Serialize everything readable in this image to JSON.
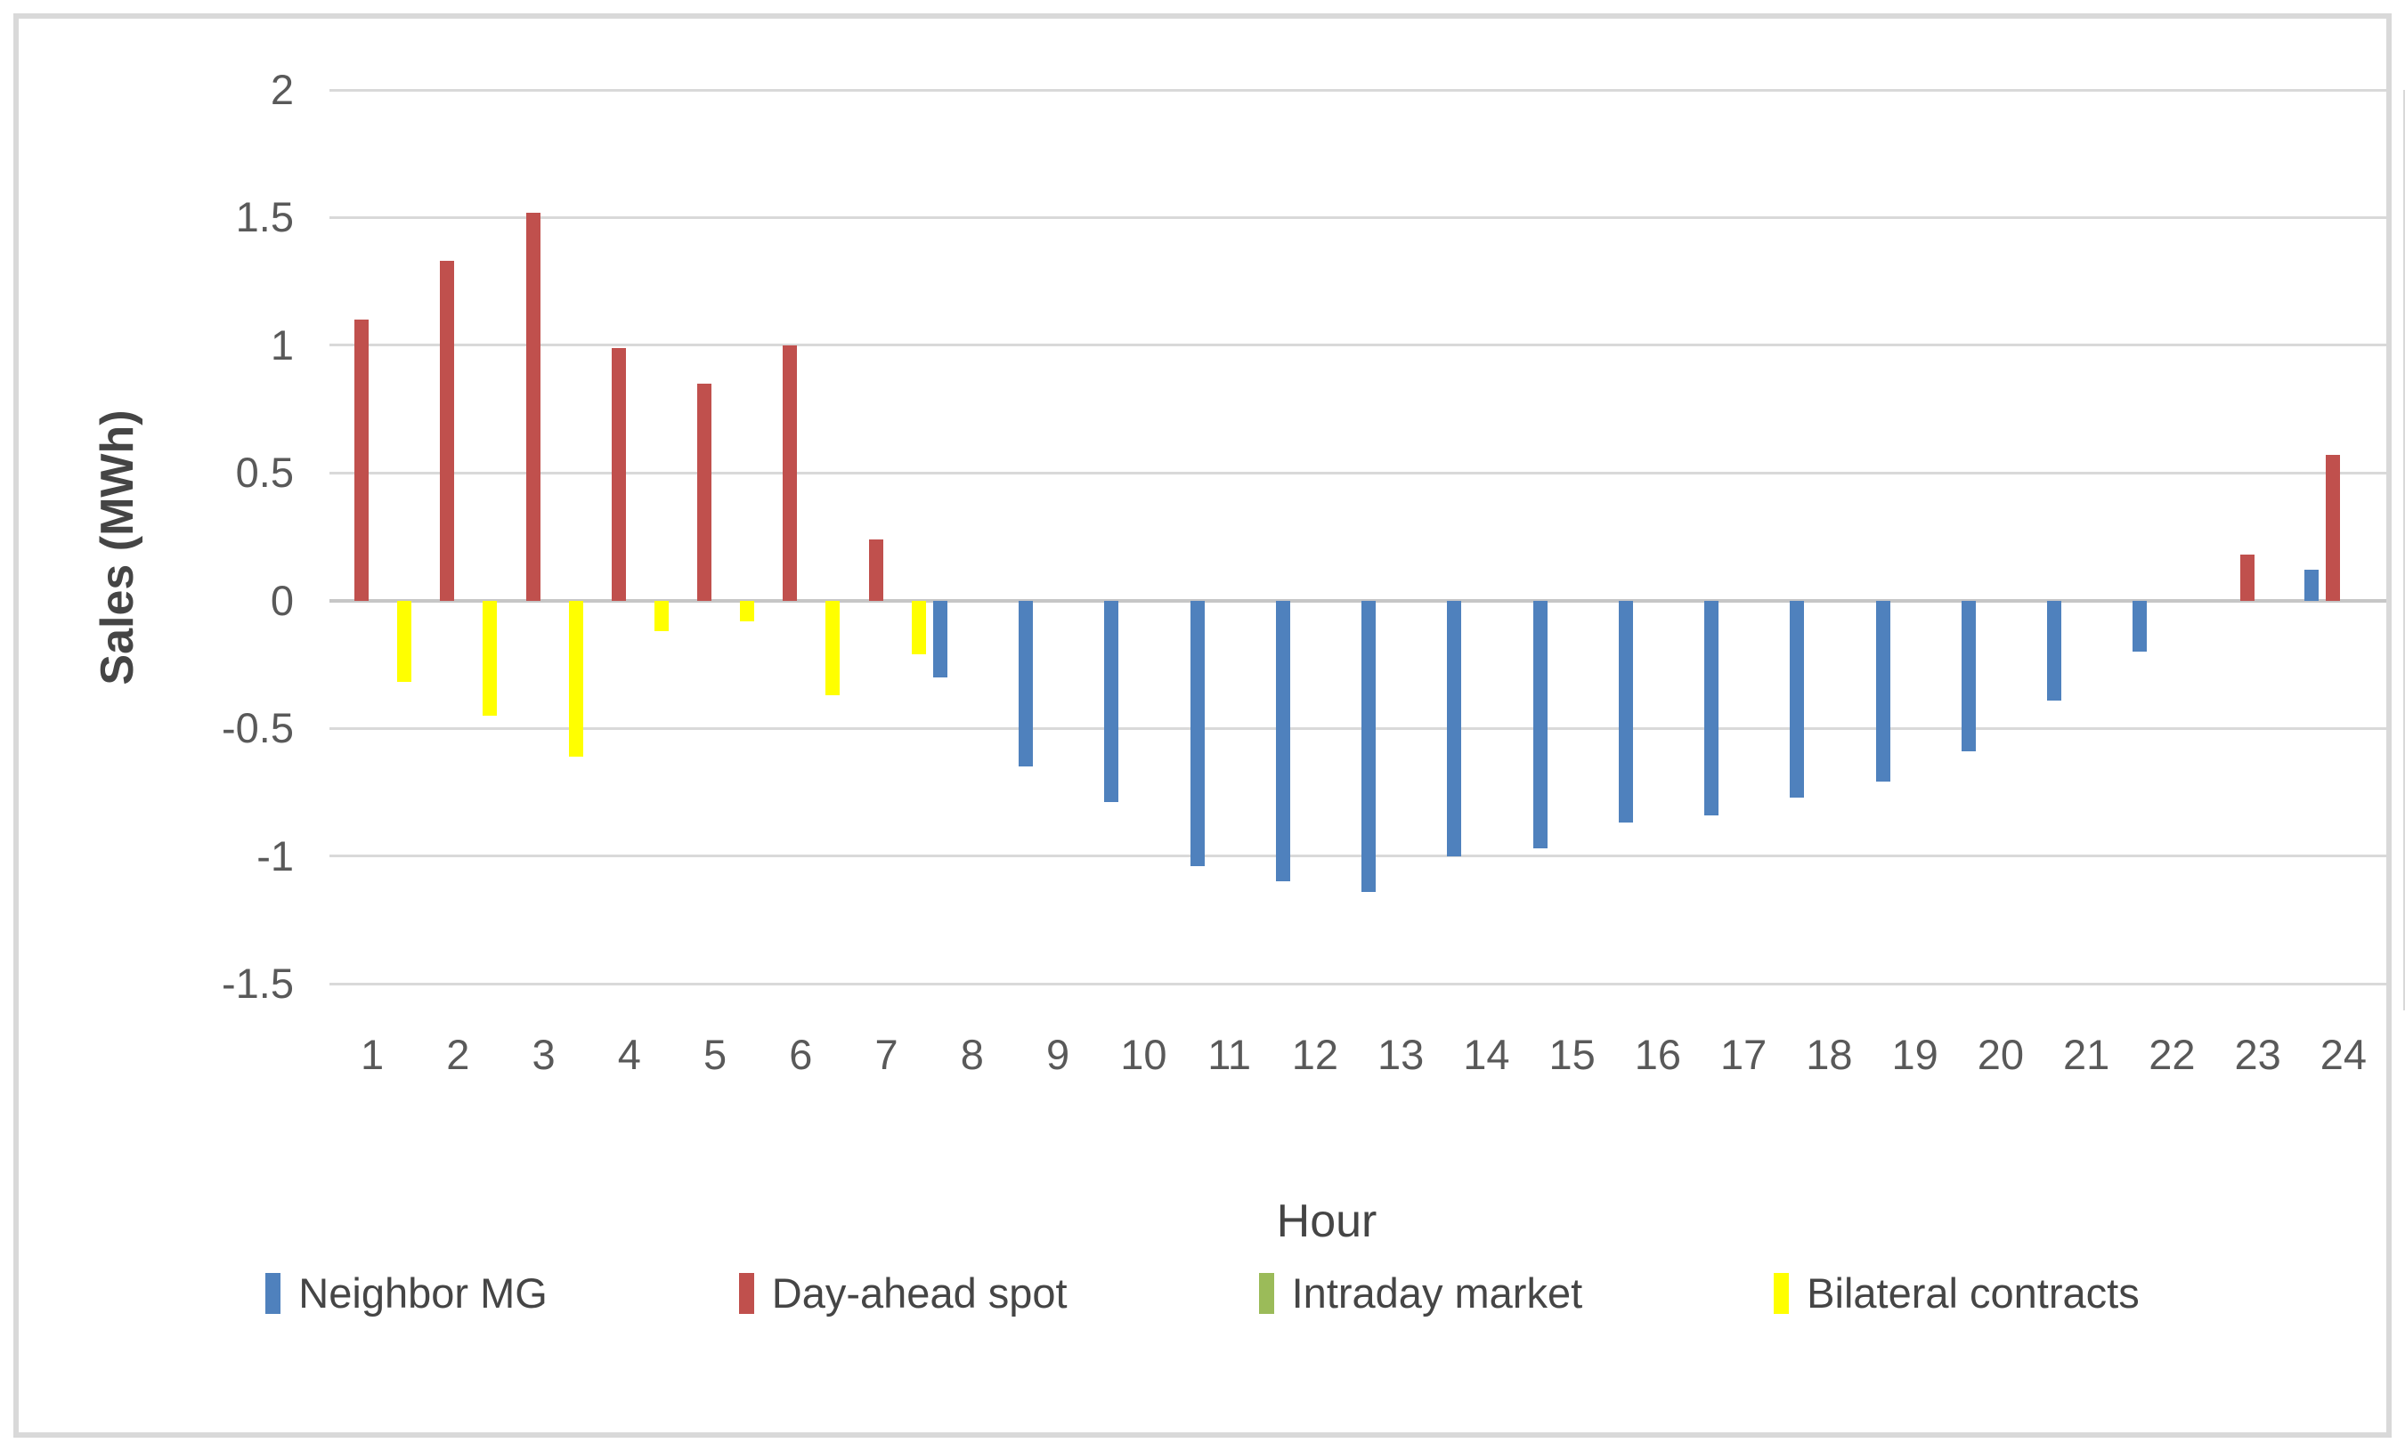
{
  "chart_data": {
    "type": "bar",
    "title": "",
    "xlabel": "Hour",
    "ylabel": "Sales (MWh)",
    "x": [
      1,
      2,
      3,
      4,
      5,
      6,
      7,
      8,
      9,
      10,
      11,
      12,
      13,
      14,
      15,
      16,
      17,
      18,
      19,
      20,
      21,
      22,
      23,
      24
    ],
    "ylim": [
      -1.5,
      2
    ],
    "ytick_step": 0.5,
    "yticks": [
      "2",
      "1.5",
      "1",
      "0.5",
      "0",
      "-0.5",
      "-1",
      "-1.5"
    ],
    "grid": true,
    "legend_position": "bottom",
    "series": [
      {
        "name": "Neighbor MG",
        "color": "#4F81BD",
        "values": [
          0,
          0,
          0,
          0,
          0,
          0,
          0,
          -0.3,
          -0.65,
          -0.79,
          -1.04,
          -1.1,
          -1.14,
          -1.0,
          -0.97,
          -0.87,
          -0.84,
          -0.77,
          -0.71,
          -0.59,
          -0.39,
          -0.2,
          0,
          0.12
        ]
      },
      {
        "name": "Day-ahead spot",
        "color": "#C0504D",
        "values": [
          1.1,
          1.33,
          1.52,
          0.99,
          0.85,
          1.0,
          0.24,
          0,
          0,
          0,
          0,
          0,
          0,
          0,
          0,
          0,
          0,
          0,
          0,
          0,
          0,
          0,
          0.18,
          0.57
        ]
      },
      {
        "name": "Intraday market",
        "color": "#9BBB59",
        "values": [
          0,
          0,
          0,
          0,
          0,
          0,
          0,
          0,
          0,
          0,
          0,
          0,
          0,
          0,
          0,
          0,
          0,
          0,
          0,
          0,
          0,
          0,
          0,
          0
        ]
      },
      {
        "name": "Bilateral contracts",
        "color": "#FFFF00",
        "values": [
          -0.32,
          -0.45,
          -0.61,
          -0.12,
          -0.08,
          -0.37,
          -0.21,
          0,
          0,
          0,
          0,
          0,
          0,
          0,
          0,
          0,
          0,
          0,
          0,
          0,
          0,
          0,
          0,
          0
        ]
      }
    ]
  }
}
